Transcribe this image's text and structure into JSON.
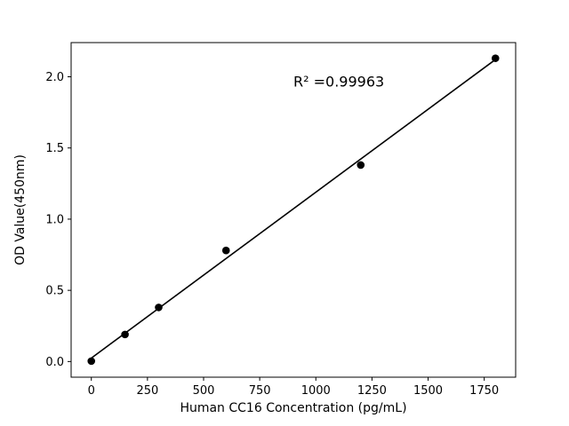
{
  "chart_data": {
    "type": "scatter",
    "title": "",
    "xlabel": "Human CC16 Concentration (pg/mL)",
    "ylabel": "OD Value(450nm)",
    "x": [
      0,
      150,
      300,
      600,
      1200,
      1800
    ],
    "y": [
      0.003,
      0.19,
      0.38,
      0.78,
      1.38,
      2.13
    ],
    "fit": "linear",
    "annotation": {
      "text": "R² =0.99963",
      "x": 900,
      "y": 1.93
    },
    "xlim": [
      -90,
      1890
    ],
    "ylim": [
      -0.11,
      2.24
    ],
    "xticks": [
      0,
      250,
      500,
      750,
      1000,
      1250,
      1500,
      1750
    ],
    "yticks": [
      0.0,
      0.5,
      1.0,
      1.5,
      2.0
    ],
    "grid": false,
    "legend": null,
    "marker_color": "#000000",
    "line_color": "#000000",
    "background_color": "#ffffff"
  }
}
